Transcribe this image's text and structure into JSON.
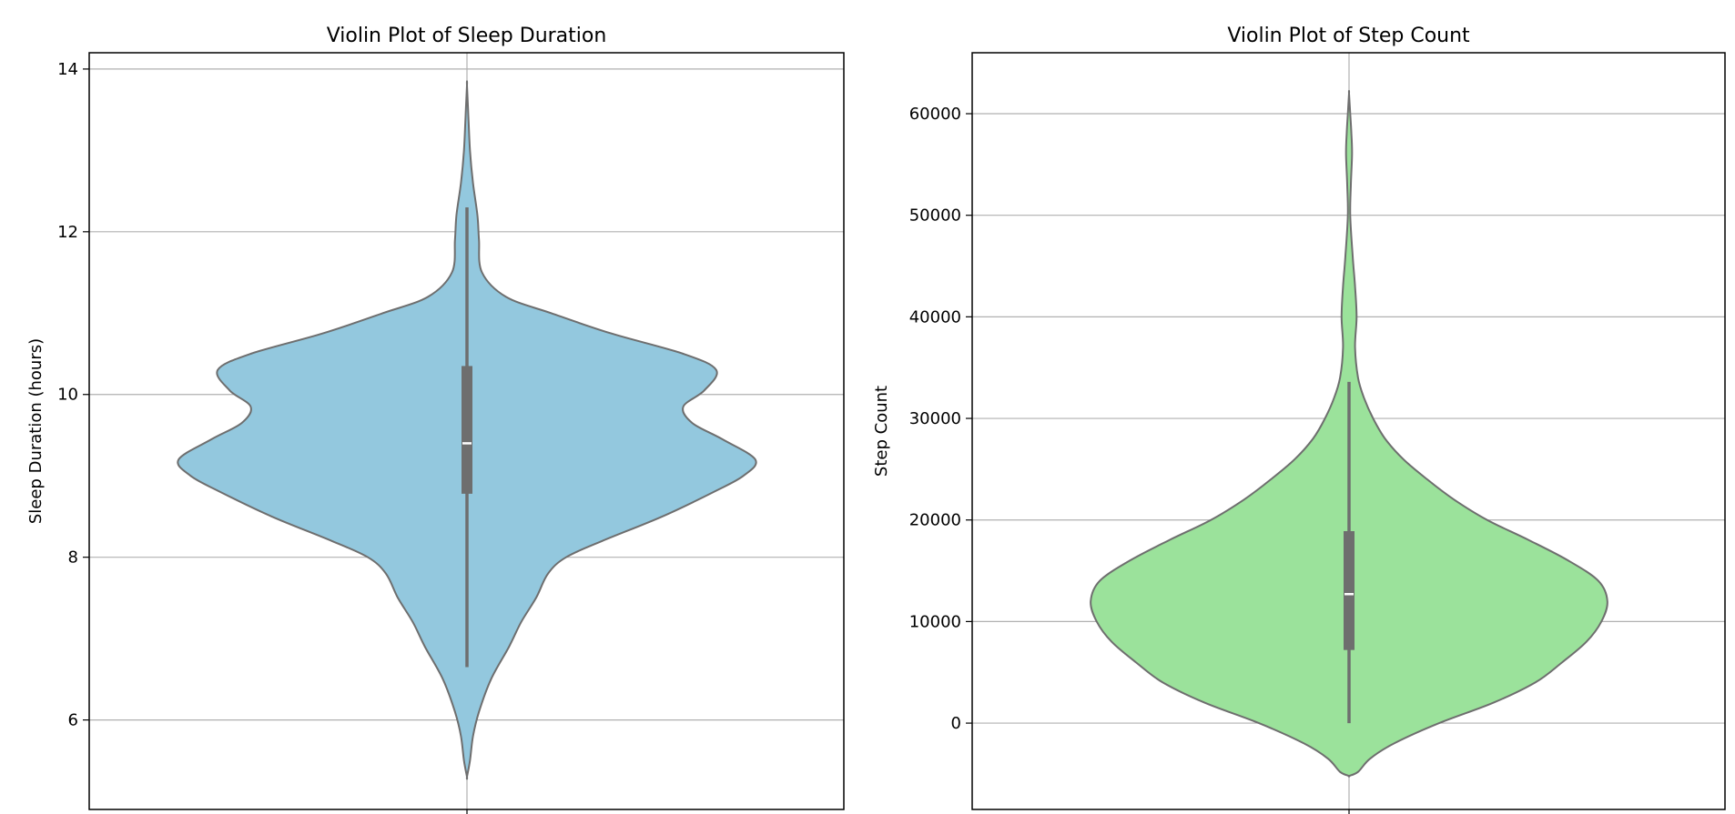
{
  "chart_data": [
    {
      "type": "violin",
      "title": "Violin Plot of Sleep Duration",
      "xlabel": "",
      "ylabel": "Sleep Duration (hours)",
      "ylim": [
        4.9,
        14.2
      ],
      "yticks": [
        6,
        8,
        10,
        12,
        14
      ],
      "grid": true,
      "fill_color": "#93c8de",
      "edge_color": "#6e6e6e",
      "box_color": "#6e6e6e",
      "median_color": "#ffffff",
      "density": [
        {
          "y": 5.3,
          "half_width": 0.0
        },
        {
          "y": 5.5,
          "half_width": 0.01
        },
        {
          "y": 5.8,
          "half_width": 0.02
        },
        {
          "y": 6.1,
          "half_width": 0.04
        },
        {
          "y": 6.5,
          "half_width": 0.08
        },
        {
          "y": 6.9,
          "half_width": 0.14
        },
        {
          "y": 7.2,
          "half_width": 0.18
        },
        {
          "y": 7.5,
          "half_width": 0.23
        },
        {
          "y": 7.8,
          "half_width": 0.27
        },
        {
          "y": 8.0,
          "half_width": 0.33
        },
        {
          "y": 8.2,
          "half_width": 0.45
        },
        {
          "y": 8.5,
          "half_width": 0.65
        },
        {
          "y": 8.8,
          "half_width": 0.82
        },
        {
          "y": 9.0,
          "half_width": 0.92
        },
        {
          "y": 9.2,
          "half_width": 0.96
        },
        {
          "y": 9.45,
          "half_width": 0.85
        },
        {
          "y": 9.65,
          "half_width": 0.75
        },
        {
          "y": 9.85,
          "half_width": 0.72
        },
        {
          "y": 10.05,
          "half_width": 0.79
        },
        {
          "y": 10.3,
          "half_width": 0.83
        },
        {
          "y": 10.5,
          "half_width": 0.72
        },
        {
          "y": 10.75,
          "half_width": 0.48
        },
        {
          "y": 11.0,
          "half_width": 0.28
        },
        {
          "y": 11.2,
          "half_width": 0.13
        },
        {
          "y": 11.5,
          "half_width": 0.05
        },
        {
          "y": 11.9,
          "half_width": 0.04
        },
        {
          "y": 12.2,
          "half_width": 0.035
        },
        {
          "y": 12.6,
          "half_width": 0.02
        },
        {
          "y": 13.0,
          "half_width": 0.01
        },
        {
          "y": 13.4,
          "half_width": 0.005
        },
        {
          "y": 13.8,
          "half_width": 0.0
        }
      ],
      "box": {
        "q1": 8.78,
        "median": 9.4,
        "q3": 10.35,
        "whisker_low": 6.65,
        "whisker_high": 12.3
      }
    },
    {
      "type": "violin",
      "title": "Violin Plot of Step Count",
      "xlabel": "",
      "ylabel": "Step Count",
      "ylim": [
        -8500,
        66000
      ],
      "yticks": [
        0,
        10000,
        20000,
        30000,
        40000,
        50000,
        60000
      ],
      "grid": true,
      "fill_color": "#9be29b",
      "edge_color": "#6e6e6e",
      "box_color": "#6e6e6e",
      "median_color": "#ffffff",
      "density": [
        {
          "y": -5200,
          "half_width": 0.0
        },
        {
          "y": -4800,
          "half_width": 0.03
        },
        {
          "y": -3500,
          "half_width": 0.07
        },
        {
          "y": -2000,
          "half_width": 0.15
        },
        {
          "y": 0,
          "half_width": 0.3
        },
        {
          "y": 2000,
          "half_width": 0.48
        },
        {
          "y": 4000,
          "half_width": 0.62
        },
        {
          "y": 6000,
          "half_width": 0.71
        },
        {
          "y": 8000,
          "half_width": 0.79
        },
        {
          "y": 10000,
          "half_width": 0.84
        },
        {
          "y": 12000,
          "half_width": 0.86
        },
        {
          "y": 14000,
          "half_width": 0.83
        },
        {
          "y": 16000,
          "half_width": 0.73
        },
        {
          "y": 18000,
          "half_width": 0.6
        },
        {
          "y": 20000,
          "half_width": 0.46
        },
        {
          "y": 22000,
          "half_width": 0.35
        },
        {
          "y": 24000,
          "half_width": 0.26
        },
        {
          "y": 26000,
          "half_width": 0.18
        },
        {
          "y": 28000,
          "half_width": 0.12
        },
        {
          "y": 30000,
          "half_width": 0.08
        },
        {
          "y": 32000,
          "half_width": 0.05
        },
        {
          "y": 34000,
          "half_width": 0.03
        },
        {
          "y": 37000,
          "half_width": 0.02
        },
        {
          "y": 40000,
          "half_width": 0.025
        },
        {
          "y": 43000,
          "half_width": 0.02
        },
        {
          "y": 46000,
          "half_width": 0.012
        },
        {
          "y": 50000,
          "half_width": 0.004
        },
        {
          "y": 53000,
          "half_width": 0.006
        },
        {
          "y": 56000,
          "half_width": 0.01
        },
        {
          "y": 58000,
          "half_width": 0.008
        },
        {
          "y": 60000,
          "half_width": 0.004
        },
        {
          "y": 62000,
          "half_width": 0.0
        }
      ],
      "box": {
        "q1": 7200,
        "median": 12700,
        "q3": 18900,
        "whisker_low": 0,
        "whisker_high": 33600
      }
    }
  ]
}
